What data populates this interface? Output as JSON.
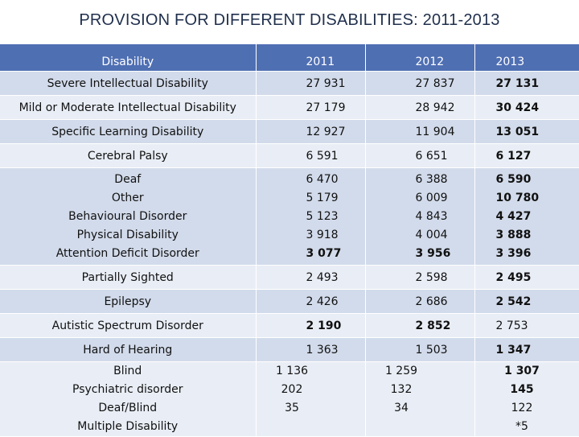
{
  "title": "PROVISION FOR DIFFERENT DISABILITIES: 2011-2013",
  "header": {
    "col0": "Disability",
    "col1": "2011",
    "col2": "2012",
    "col3": "2013"
  },
  "rows": [
    {
      "label": "Severe Intellectual Disability",
      "y2011": "27 931",
      "y2012": "27 837",
      "y2013": "27 131"
    },
    {
      "label": "Mild or Moderate Intellectual Disability",
      "y2011": "27 179",
      "y2012": "28 942",
      "y2013": "30 424"
    },
    {
      "label": "Specific Learning Disability",
      "y2011": "12 927",
      "y2012": "11 904",
      "y2013": "13 051"
    },
    {
      "label": "Cerebral Palsy",
      "y2011": "6 591",
      "y2012": "6 651",
      "y2013": "6 127"
    },
    {
      "label": "Deaf",
      "y2011": "6 470",
      "y2012": "6 388",
      "y2013": "6 590"
    },
    {
      "label": "Other",
      "y2011": "5 179",
      "y2012": "6 009",
      "y2013": "10 780"
    },
    {
      "label": "Behavioural Disorder",
      "y2011": "5 123",
      "y2012": "4 843",
      "y2013": "4 427"
    },
    {
      "label": "Physical Disability",
      "y2011": "3 918",
      "y2012": "4 004",
      "y2013": "3 888"
    },
    {
      "label": "Attention Deficit Disorder",
      "y2011": "3 077",
      "y2012": "3 956",
      "y2013": "3 396"
    },
    {
      "label": "Partially Sighted",
      "y2011": "2 493",
      "y2012": "2 598",
      "y2013": "2 495"
    },
    {
      "label": "Epilepsy",
      "y2011": "2 426",
      "y2012": "2 686",
      "y2013": "2 542"
    },
    {
      "label": "Autistic Spectrum Disorder",
      "y2011": "2 190",
      "y2012": "2 852",
      "y2013": "2 753"
    },
    {
      "label": "Hard of Hearing",
      "y2011": "1 363",
      "y2012": "1 503",
      "y2013": "1 347"
    },
    {
      "label": "Blind",
      "y2011": "1 136",
      "y2012": "1 259",
      "y2013": "1 307"
    },
    {
      "label": "Psychiatric disorder",
      "y2011": "202",
      "y2012": "132",
      "y2013": "145"
    },
    {
      "label": "Deaf/Blind",
      "y2011": "35",
      "y2012": "34",
      "y2013": "122"
    },
    {
      "label": "Multiple Disability",
      "y2011": "",
      "y2012": "",
      "y2013": "*5"
    }
  ],
  "colors": {
    "header_bg": "#4f6fb3",
    "row_dark": "#d2dbeb",
    "row_light": "#e9eef6",
    "title": "#1f2f4c"
  }
}
